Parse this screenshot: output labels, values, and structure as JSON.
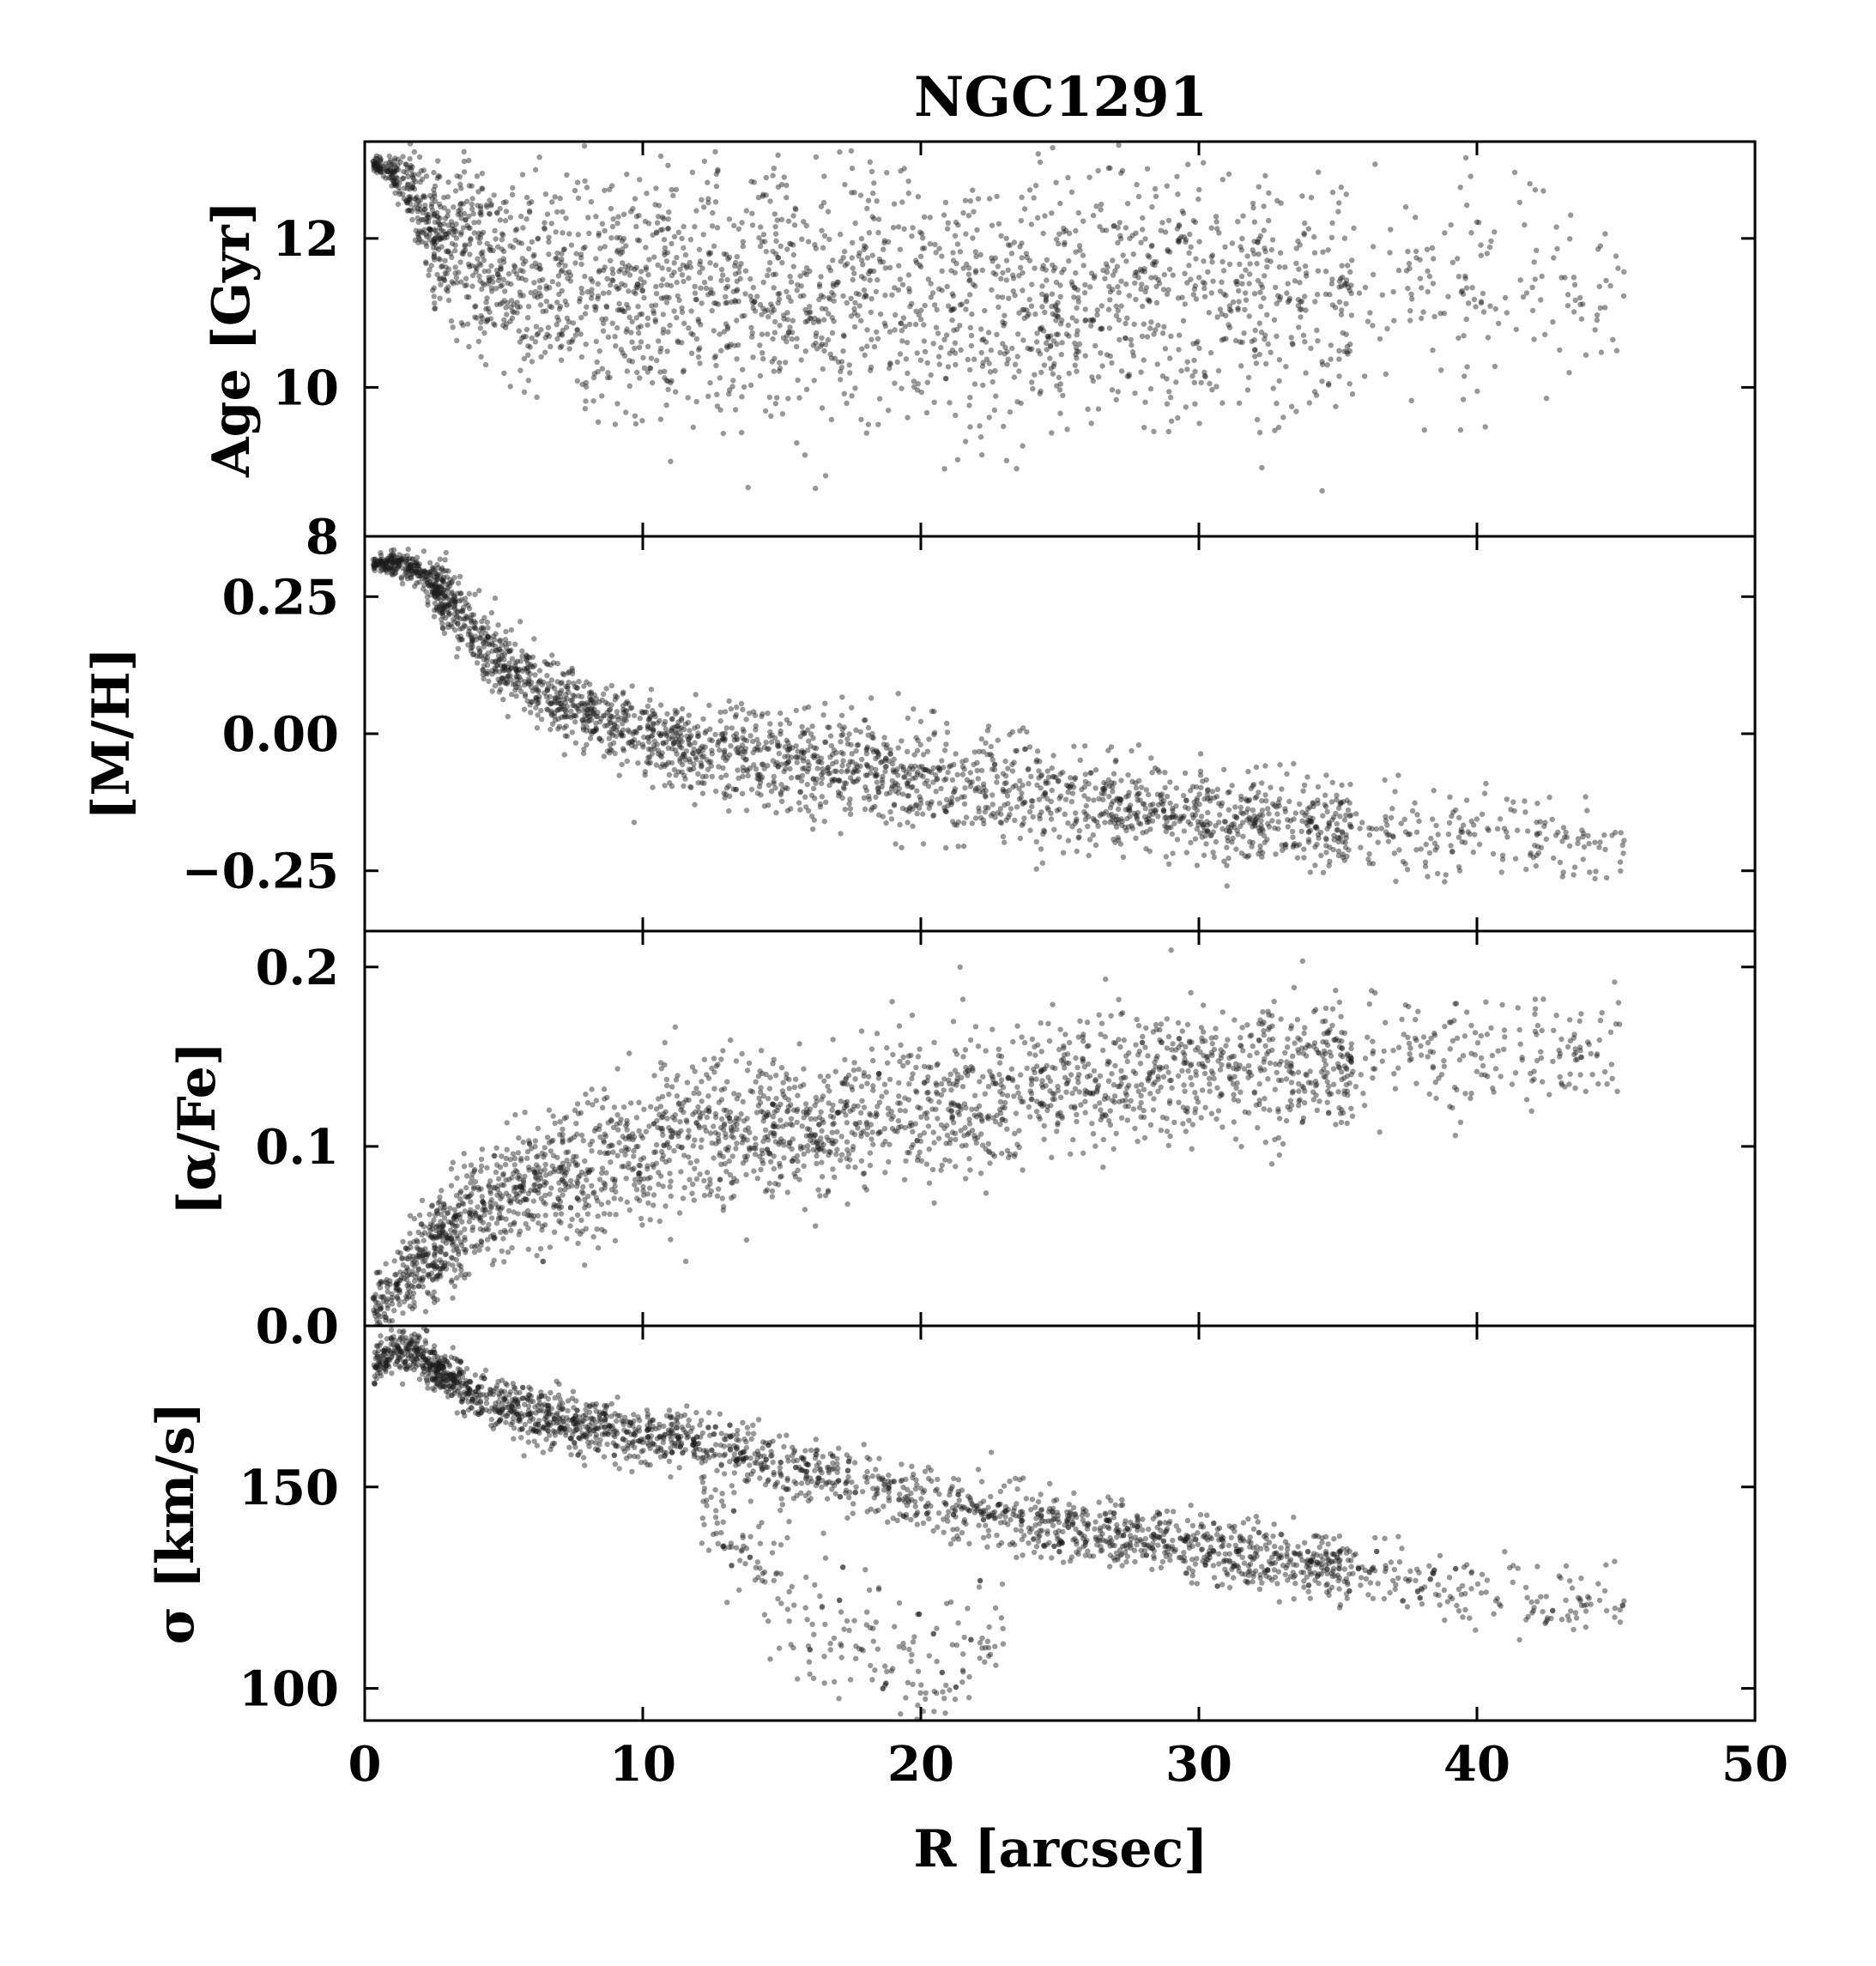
{
  "chart_data": {
    "type": "scatter",
    "title": "NGC1291",
    "xlabel": "R [arcsec]",
    "xlim": [
      0,
      50
    ],
    "xticks": [
      0,
      10,
      20,
      30,
      40,
      50
    ],
    "xtick_labels": [
      "0",
      "10",
      "20",
      "30",
      "40",
      "50"
    ],
    "marker_color": "#1a1a1a",
    "grid": false,
    "legend": "none",
    "panels": [
      {
        "id": "age",
        "ylabel": "Age [Gyr]",
        "ylim": [
          8,
          13.3
        ],
        "yticks": [
          8,
          10,
          12
        ],
        "ytick_labels": [
          "8",
          "10",
          "12"
        ],
        "trend": {
          "x": [
            0.3,
            1,
            1.5,
            2,
            3,
            4,
            6,
            8,
            10,
            12,
            15,
            20,
            25,
            30,
            35,
            40,
            45
          ],
          "y": [
            13.0,
            12.9,
            12.7,
            12.3,
            11.9,
            11.7,
            11.5,
            11.4,
            11.3,
            11.2,
            11.2,
            11.2,
            11.2,
            11.2,
            11.2,
            11.2,
            11.1
          ],
          "spread": [
            0.05,
            0.1,
            0.2,
            0.35,
            0.5,
            0.6,
            0.7,
            0.75,
            0.8,
            0.85,
            0.9,
            0.9,
            0.9,
            0.85,
            0.8,
            0.8,
            0.7
          ]
        }
      },
      {
        "id": "metallicity",
        "ylabel": "[M/H]",
        "ylim": [
          -0.36,
          0.36
        ],
        "yticks": [
          -0.25,
          0.0,
          0.25
        ],
        "ytick_labels": [
          "−0.25",
          "0.00",
          "0.25"
        ],
        "trend": {
          "x": [
            0.3,
            1,
            2,
            3,
            4,
            5,
            6,
            8,
            10,
            12,
            15,
            20,
            25,
            30,
            35,
            40,
            45
          ],
          "y": [
            0.31,
            0.31,
            0.3,
            0.24,
            0.18,
            0.13,
            0.09,
            0.04,
            0.0,
            -0.03,
            -0.05,
            -0.08,
            -0.12,
            -0.15,
            -0.17,
            -0.19,
            -0.2
          ],
          "spread": [
            0.005,
            0.01,
            0.015,
            0.03,
            0.035,
            0.035,
            0.035,
            0.035,
            0.035,
            0.04,
            0.045,
            0.05,
            0.045,
            0.04,
            0.04,
            0.04,
            0.03
          ]
        }
      },
      {
        "id": "alpha",
        "ylabel": "[α/Fe]",
        "ylim": [
          0.0,
          0.22
        ],
        "yticks": [
          0.0,
          0.1,
          0.2
        ],
        "ytick_labels": [
          "0.0",
          "0.1",
          "0.2"
        ],
        "trend": {
          "x": [
            0.3,
            1,
            2,
            3,
            4,
            6,
            8,
            10,
            12,
            15,
            20,
            25,
            30,
            35,
            40,
            45
          ],
          "y": [
            0.01,
            0.02,
            0.035,
            0.05,
            0.065,
            0.08,
            0.09,
            0.1,
            0.105,
            0.11,
            0.12,
            0.135,
            0.14,
            0.145,
            0.15,
            0.155
          ],
          "spread": [
            0.008,
            0.01,
            0.012,
            0.014,
            0.016,
            0.018,
            0.02,
            0.02,
            0.02,
            0.02,
            0.02,
            0.02,
            0.018,
            0.018,
            0.016,
            0.014
          ]
        }
      },
      {
        "id": "sigma",
        "ylabel": "σ [km/s]",
        "ylim": [
          92,
          190
        ],
        "yticks": [
          100,
          150
        ],
        "ytick_labels": [
          "100",
          "150"
        ],
        "trend": {
          "x": [
            0.3,
            1,
            2,
            3,
            4,
            6,
            8,
            10,
            12,
            15,
            20,
            25,
            30,
            35,
            40,
            45
          ],
          "y": [
            180,
            183,
            183,
            177,
            173,
            168,
            165,
            163,
            161,
            156,
            147,
            140,
            135,
            130,
            124,
            121
          ],
          "spread": [
            2,
            2.5,
            3,
            3,
            3.5,
            3.5,
            3.5,
            3.5,
            3.5,
            4,
            4,
            4,
            4,
            4,
            4,
            4
          ]
        },
        "secondary": {
          "x": [
            12,
            14,
            16,
            18,
            20,
            22,
            23
          ],
          "y": [
            145,
            130,
            118,
            108,
            104,
            110,
            118
          ],
          "spread": [
            6,
            8,
            10,
            9,
            8,
            6,
            5
          ]
        }
      }
    ]
  }
}
